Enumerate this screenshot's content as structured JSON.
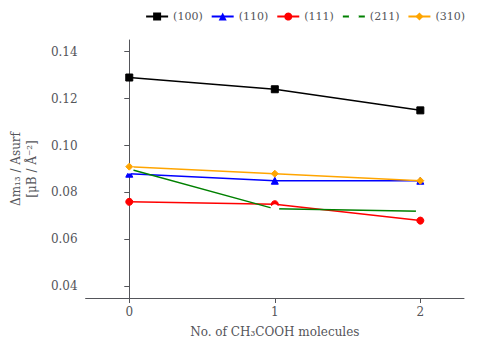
{
  "chart_data": {
    "type": "line",
    "xlabel": "No. of CH₃COOH molecules",
    "ylabel": "Δm₁₃ / Asurf\n[μB / Å⁻²]",
    "series": [
      {
        "name": "(100)",
        "color": "#000000",
        "marker": "square",
        "x": [
          0,
          1,
          2
        ],
        "values": [
          0.129,
          0.124,
          0.115
        ]
      },
      {
        "name": "(110)",
        "color": "#0000ff",
        "marker": "triangle",
        "x": [
          0,
          1,
          2
        ],
        "values": [
          0.088,
          0.085,
          0.085
        ]
      },
      {
        "name": "(111)",
        "color": "#ff0000",
        "marker": "circle",
        "x": [
          0,
          1,
          2
        ],
        "values": [
          0.076,
          0.075,
          0.068
        ]
      },
      {
        "name": "(211)",
        "color": "#008000",
        "marker": "open circle",
        "x": [
          0,
          1,
          2
        ],
        "values": [
          0.09,
          0.073,
          0.072
        ]
      },
      {
        "name": "(310)",
        "color": "#ffa500",
        "marker": "diamond",
        "x": [
          0,
          1,
          2
        ],
        "values": [
          0.091,
          0.088,
          0.085
        ]
      }
    ],
    "xlim": [
      -0.3,
      2.3
    ],
    "xticks": [
      0,
      1,
      2
    ],
    "ylim": [
      0.035,
      0.145
    ],
    "yticks": [
      0.04,
      0.06,
      0.08,
      {
        "value": 0.1,
        "label": "0.10"
      },
      0.12,
      0.14
    ],
    "grid": false,
    "legend": "upper right"
  }
}
